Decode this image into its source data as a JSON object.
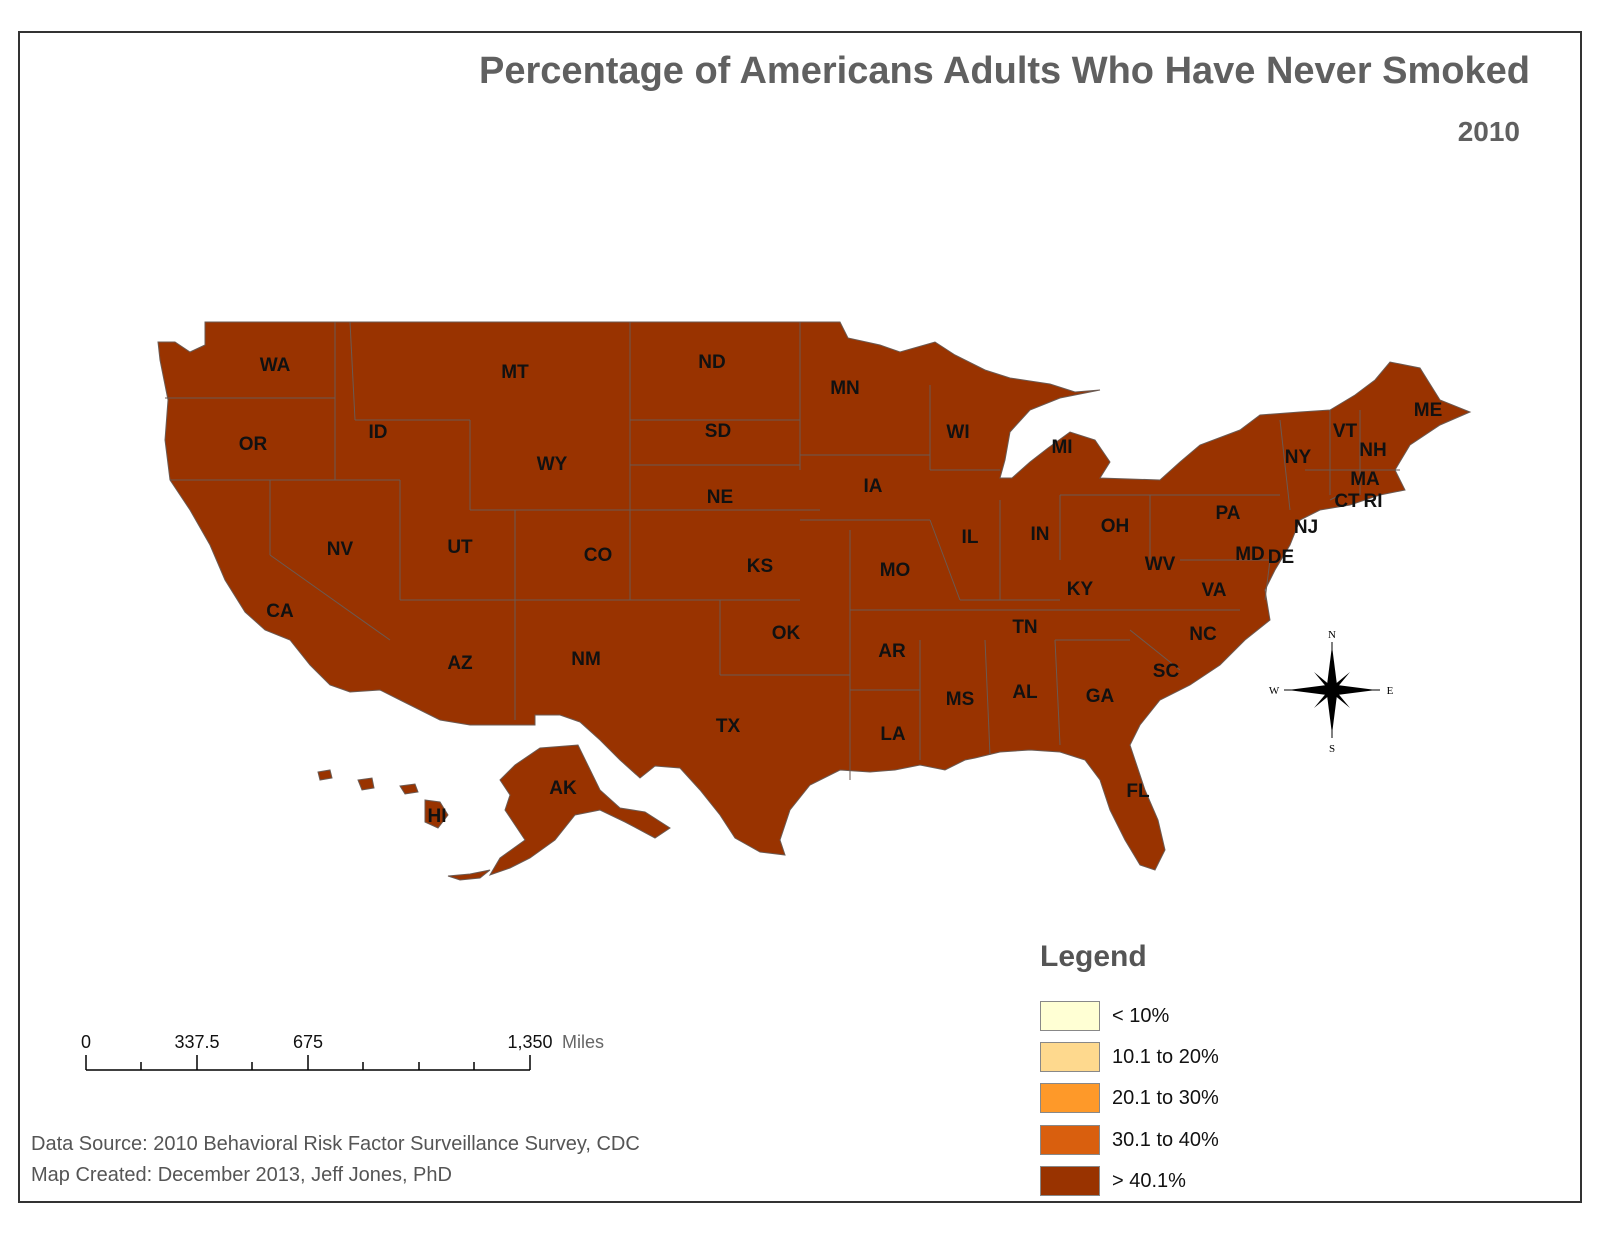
{
  "title": "Percentage of Americans Adults Who Have Never Smoked",
  "subtitle": "2010",
  "map_fill_color": "#993300",
  "map_border_color": "#6b5a52",
  "states": [
    "WA",
    "OR",
    "CA",
    "ID",
    "NV",
    "MT",
    "WY",
    "UT",
    "AZ",
    "CO",
    "NM",
    "ND",
    "SD",
    "NE",
    "KS",
    "OK",
    "TX",
    "MN",
    "IA",
    "MO",
    "AR",
    "LA",
    "WI",
    "IL",
    "MI",
    "IN",
    "OH",
    "KY",
    "TN",
    "MS",
    "AL",
    "GA",
    "FL",
    "SC",
    "NC",
    "VA",
    "WV",
    "PA",
    "NY",
    "VT",
    "NH",
    "ME",
    "MA",
    "CT",
    "RI",
    "NJ",
    "MD",
    "DE",
    "AK",
    "HI"
  ],
  "state_class": "> 40.1%",
  "legend": {
    "title": "Legend",
    "items": [
      {
        "label": "< 10%",
        "color": "#ffffd4"
      },
      {
        "label": "10.1 to 20%",
        "color": "#fed98e"
      },
      {
        "label": "20.1 to 30%",
        "color": "#fe9929"
      },
      {
        "label": "30.1 to 40%",
        "color": "#d95f0e"
      },
      {
        "label": "> 40.1%",
        "color": "#993300"
      }
    ]
  },
  "scale_bar": {
    "labels": [
      "0",
      "337.5",
      "675",
      "1,350"
    ],
    "unit": "Miles"
  },
  "compass": {
    "n": "N",
    "s": "S",
    "e": "E",
    "w": "W"
  },
  "footer": {
    "source": "Data Source:  2010 Behavioral Risk Factor Surveillance Survey, CDC",
    "created": "Map Created:  December 2013, Jeff Jones, PhD"
  }
}
